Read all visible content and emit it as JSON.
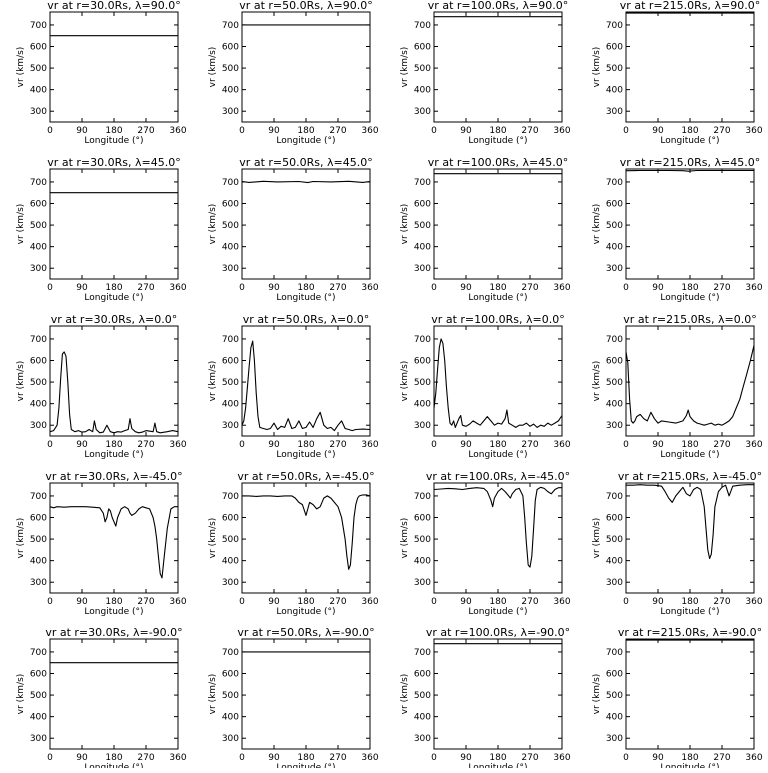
{
  "chart_data": {
    "type": "line",
    "xlabel": "Longitude (°)",
    "ylabel": "vr (km/s)",
    "xlim": [
      0,
      360
    ],
    "ylim": [
      250,
      760
    ],
    "xticks": [
      0,
      90,
      180,
      270,
      360
    ],
    "yticks": [
      300,
      400,
      500,
      600,
      700
    ],
    "grid": false,
    "legend": "none",
    "rows": [
      "90.0",
      "45.0",
      "0.0",
      "-45.0",
      "-90.0"
    ],
    "cols": [
      "30.0",
      "50.0",
      "100.0",
      "215.0"
    ],
    "panels": [
      {
        "title": "vr at r=30.0Rs, λ=90.0°",
        "x": [
          0,
          360
        ],
        "y": [
          650,
          650
        ]
      },
      {
        "title": "vr at r=50.0Rs, λ=90.0°",
        "x": [
          0,
          360
        ],
        "y": [
          700,
          700
        ]
      },
      {
        "title": "vr at r=100.0Rs, λ=90.0°",
        "x": [
          0,
          360
        ],
        "y": [
          738,
          738
        ]
      },
      {
        "title": "vr at r=215.0Rs, λ=90.0°",
        "x": [
          0,
          360
        ],
        "y": [
          755,
          755
        ]
      },
      {
        "title": "vr at r=30.0Rs, λ=45.0°",
        "x": [
          0,
          360
        ],
        "y": [
          650,
          650
        ]
      },
      {
        "title": "vr at r=50.0Rs, λ=45.0°",
        "x": [
          0,
          20,
          60,
          100,
          160,
          185,
          200,
          250,
          300,
          340,
          360
        ],
        "y": [
          702,
          698,
          703,
          700,
          702,
          697,
          702,
          700,
          703,
          698,
          702
        ]
      },
      {
        "title": "vr at r=100.0Rs, λ=45.0°",
        "x": [
          0,
          360
        ],
        "y": [
          738,
          738
        ]
      },
      {
        "title": "vr at r=215.0Rs, λ=45.0°",
        "x": [
          0,
          10,
          40,
          120,
          160,
          175,
          200,
          300,
          360
        ],
        "y": [
          752,
          752,
          753,
          753,
          752,
          750,
          753,
          753,
          753
        ]
      },
      {
        "title": "vr at r=30.0Rs, λ=0.0°",
        "x": [
          0,
          10,
          20,
          25,
          30,
          35,
          40,
          45,
          50,
          55,
          60,
          70,
          80,
          90,
          100,
          110,
          120,
          125,
          130,
          140,
          150,
          160,
          170,
          180,
          190,
          200,
          210,
          220,
          225,
          230,
          240,
          250,
          260,
          270,
          290,
          295,
          300,
          310,
          330,
          345,
          360
        ],
        "y": [
          270,
          275,
          300,
          380,
          520,
          630,
          640,
          620,
          500,
          350,
          280,
          270,
          275,
          268,
          270,
          280,
          270,
          320,
          280,
          265,
          268,
          300,
          270,
          265,
          270,
          268,
          275,
          280,
          330,
          285,
          270,
          265,
          268,
          275,
          270,
          310,
          270,
          265,
          270,
          275,
          270
        ]
      },
      {
        "title": "vr at r=50.0Rs, λ=0.0°",
        "x": [
          0,
          5,
          10,
          15,
          20,
          25,
          30,
          35,
          40,
          45,
          50,
          60,
          70,
          80,
          90,
          100,
          110,
          120,
          130,
          140,
          150,
          160,
          170,
          180,
          190,
          200,
          210,
          220,
          230,
          240,
          250,
          260,
          270,
          280,
          290,
          300,
          310,
          320,
          340,
          360
        ],
        "y": [
          300,
          320,
          380,
          470,
          570,
          660,
          690,
          600,
          450,
          340,
          290,
          285,
          280,
          285,
          310,
          280,
          295,
          290,
          330,
          285,
          290,
          320,
          285,
          290,
          315,
          290,
          330,
          360,
          300,
          285,
          290,
          275,
          300,
          320,
          285,
          280,
          275,
          280,
          282,
          280
        ]
      },
      {
        "title": "vr at r=100.0Rs, λ=0.0°",
        "x": [
          0,
          5,
          10,
          15,
          20,
          25,
          30,
          35,
          40,
          45,
          50,
          55,
          60,
          70,
          75,
          80,
          90,
          100,
          110,
          120,
          130,
          140,
          150,
          160,
          170,
          180,
          190,
          200,
          205,
          210,
          220,
          230,
          240,
          250,
          260,
          270,
          280,
          290,
          300,
          310,
          320,
          330,
          340,
          350,
          360
        ],
        "y": [
          380,
          450,
          560,
          660,
          700,
          680,
          600,
          480,
          380,
          310,
          300,
          320,
          290,
          330,
          345,
          300,
          295,
          305,
          320,
          310,
          300,
          320,
          340,
          320,
          300,
          310,
          305,
          330,
          370,
          310,
          300,
          290,
          300,
          300,
          310,
          295,
          305,
          290,
          300,
          295,
          310,
          300,
          310,
          320,
          345
        ]
      },
      {
        "title": "vr at r=215.0Rs, λ=0.0°",
        "x": [
          0,
          5,
          10,
          15,
          20,
          25,
          30,
          40,
          50,
          60,
          70,
          80,
          90,
          100,
          120,
          140,
          160,
          170,
          175,
          180,
          190,
          200,
          210,
          220,
          230,
          240,
          250,
          260,
          270,
          280,
          290,
          300,
          310,
          320,
          330,
          340,
          350,
          360
        ],
        "y": [
          640,
          590,
          420,
          320,
          310,
          320,
          340,
          350,
          330,
          320,
          360,
          330,
          310,
          320,
          315,
          310,
          320,
          345,
          370,
          340,
          320,
          310,
          305,
          300,
          305,
          310,
          300,
          305,
          300,
          310,
          320,
          340,
          380,
          420,
          480,
          540,
          600,
          670
        ]
      },
      {
        "title": "vr at r=30.0Rs, λ=-45.0°",
        "x": [
          0,
          10,
          20,
          40,
          60,
          80,
          100,
          120,
          140,
          150,
          155,
          160,
          165,
          170,
          175,
          180,
          185,
          190,
          200,
          210,
          220,
          225,
          230,
          240,
          250,
          260,
          270,
          280,
          290,
          295,
          300,
          305,
          310,
          315,
          320,
          330,
          340,
          350,
          360
        ],
        "y": [
          650,
          645,
          650,
          648,
          650,
          650,
          650,
          648,
          645,
          620,
          580,
          600,
          640,
          630,
          600,
          580,
          560,
          600,
          640,
          650,
          640,
          620,
          610,
          620,
          640,
          650,
          645,
          640,
          600,
          560,
          500,
          420,
          340,
          320,
          400,
          550,
          640,
          650,
          650
        ]
      },
      {
        "title": "vr at r=50.0Rs, λ=-45.0°",
        "x": [
          0,
          20,
          40,
          60,
          80,
          100,
          120,
          140,
          150,
          160,
          170,
          180,
          185,
          190,
          200,
          210,
          220,
          230,
          240,
          250,
          260,
          270,
          280,
          290,
          295,
          300,
          305,
          310,
          315,
          320,
          325,
          330,
          340,
          350,
          360
        ],
        "y": [
          700,
          700,
          698,
          700,
          700,
          698,
          700,
          700,
          690,
          670,
          660,
          610,
          640,
          670,
          660,
          640,
          650,
          690,
          700,
          690,
          670,
          650,
          600,
          500,
          420,
          360,
          380,
          480,
          600,
          660,
          690,
          700,
          705,
          705,
          700
        ]
      },
      {
        "title": "vr at r=100.0Rs, λ=-45.0°",
        "x": [
          0,
          20,
          40,
          60,
          80,
          100,
          120,
          140,
          150,
          160,
          165,
          170,
          180,
          190,
          200,
          210,
          215,
          220,
          230,
          240,
          250,
          255,
          260,
          265,
          270,
          275,
          280,
          285,
          290,
          300,
          310,
          320,
          330,
          340,
          350,
          360
        ],
        "y": [
          730,
          732,
          735,
          733,
          730,
          735,
          738,
          735,
          720,
          680,
          650,
          690,
          720,
          735,
          720,
          700,
          690,
          710,
          730,
          735,
          700,
          600,
          480,
          380,
          370,
          420,
          550,
          680,
          730,
          740,
          735,
          720,
          710,
          730,
          738,
          738
        ]
      },
      {
        "title": "vr at r=215.0Rs, λ=-45.0°",
        "x": [
          0,
          20,
          40,
          60,
          80,
          100,
          110,
          120,
          130,
          140,
          150,
          160,
          170,
          180,
          190,
          200,
          210,
          220,
          225,
          230,
          235,
          240,
          245,
          250,
          260,
          270,
          280,
          290,
          300,
          320,
          340,
          360
        ],
        "y": [
          750,
          750,
          752,
          750,
          750,
          745,
          720,
          690,
          670,
          700,
          720,
          740,
          710,
          700,
          730,
          740,
          730,
          650,
          550,
          450,
          410,
          430,
          520,
          650,
          720,
          740,
          750,
          700,
          745,
          750,
          752,
          752
        ]
      },
      {
        "title": "vr at r=30.0Rs, λ=-90.0°",
        "x": [
          0,
          360
        ],
        "y": [
          650,
          650
        ]
      },
      {
        "title": "vr at r=50.0Rs, λ=-90.0°",
        "x": [
          0,
          360
        ],
        "y": [
          700,
          700
        ]
      },
      {
        "title": "vr at r=100.0Rs, λ=-90.0°",
        "x": [
          0,
          360
        ],
        "y": [
          738,
          738
        ]
      },
      {
        "title": "vr at r=215.0Rs, λ=-90.0°",
        "x": [
          0,
          360
        ],
        "y": [
          755,
          755
        ]
      }
    ]
  }
}
